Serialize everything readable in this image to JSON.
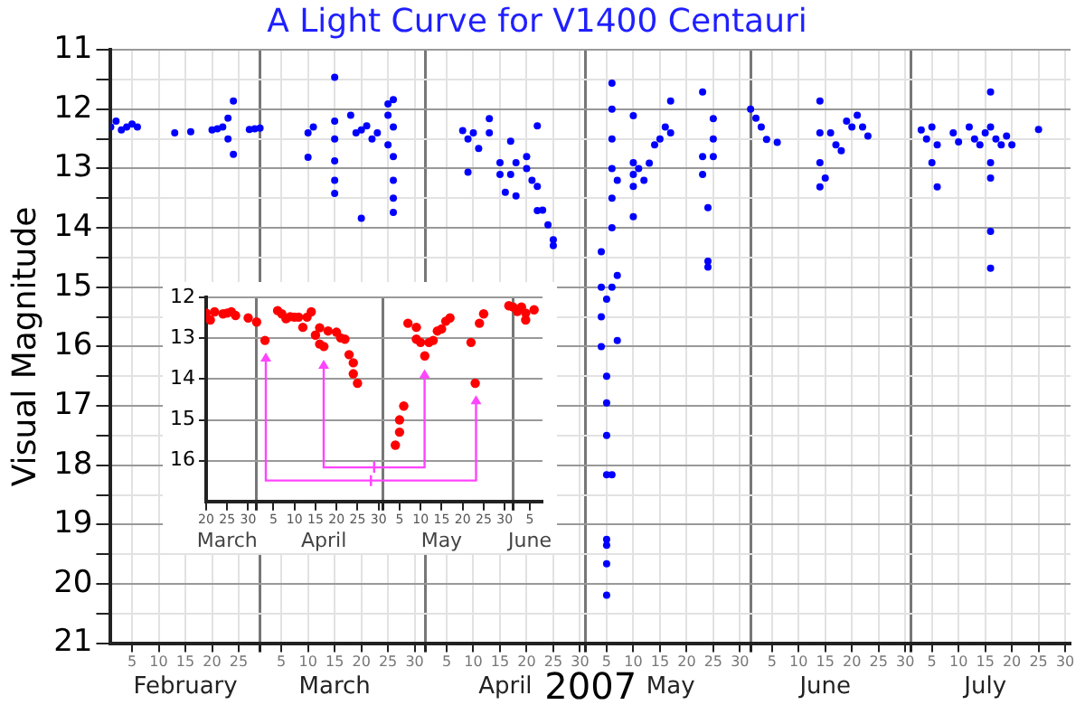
{
  "chart_data": [
    {
      "type": "scatter",
      "title": "A Light Curve for V1400 Centauri",
      "xlabel": "2007",
      "ylabel": "Visual Magnitude",
      "marker": "circle",
      "grid": true,
      "xlim": [
        "2007-02-01",
        "2007-07-31"
      ],
      "xticks": [
        {
          "value": "2007-02-05",
          "label": "5"
        },
        {
          "value": "2007-02-10",
          "label": "10"
        },
        {
          "value": "2007-02-15",
          "label": "15"
        },
        {
          "value": "2007-02-20",
          "label": "20"
        },
        {
          "value": "2007-02-25",
          "label": "25"
        },
        {
          "value": "2007-03-01",
          "label": null
        },
        {
          "value": "2007-03-05",
          "label": "5"
        },
        {
          "value": "2007-03-10",
          "label": "10"
        },
        {
          "value": "2007-03-15",
          "label": "15"
        },
        {
          "value": "2007-03-20",
          "label": "20"
        },
        {
          "value": "2007-03-25",
          "label": "25"
        },
        {
          "value": "2007-03-30",
          "label": "30"
        },
        {
          "value": "2007-04-01",
          "label": null
        },
        {
          "value": "2007-04-05",
          "label": "5"
        },
        {
          "value": "2007-04-10",
          "label": "10"
        },
        {
          "value": "2007-04-15",
          "label": "15"
        },
        {
          "value": "2007-04-20",
          "label": "20"
        },
        {
          "value": "2007-04-25",
          "label": "25"
        },
        {
          "value": "2007-04-30",
          "label": "30"
        },
        {
          "value": "2007-05-01",
          "label": null
        },
        {
          "value": "2007-05-05",
          "label": "5"
        },
        {
          "value": "2007-05-10",
          "label": "10"
        },
        {
          "value": "2007-05-15",
          "label": "15"
        },
        {
          "value": "2007-05-20",
          "label": "20"
        },
        {
          "value": "2007-05-25",
          "label": "25"
        },
        {
          "value": "2007-05-30",
          "label": "30"
        },
        {
          "value": "2007-06-01",
          "label": null
        },
        {
          "value": "2007-06-05",
          "label": "5"
        },
        {
          "value": "2007-06-10",
          "label": "10"
        },
        {
          "value": "2007-06-15",
          "label": "15"
        },
        {
          "value": "2007-06-20",
          "label": "20"
        },
        {
          "value": "2007-06-25",
          "label": "25"
        },
        {
          "value": "2007-06-30",
          "label": "30"
        },
        {
          "value": "2007-07-01",
          "label": null
        },
        {
          "value": "2007-07-05",
          "label": "5"
        },
        {
          "value": "2007-07-10",
          "label": "10"
        },
        {
          "value": "2007-07-15",
          "label": "15"
        },
        {
          "value": "2007-07-20",
          "label": "20"
        },
        {
          "value": "2007-07-25",
          "label": "25"
        },
        {
          "value": "2007-07-30",
          "label": "30"
        }
      ],
      "x2lim": [
        "2007-02-01",
        "2007-07-31"
      ],
      "x2ticks": [
        {
          "value": "2007-02-15",
          "label": "February"
        },
        {
          "value": "2007-03-15",
          "label": "March"
        },
        {
          "value": "2007-04-16",
          "label": "April"
        },
        {
          "value": "2007-05-17",
          "label": "May"
        },
        {
          "value": "2007-06-15",
          "label": "June"
        },
        {
          "value": "2007-07-15",
          "label": "July"
        }
      ],
      "ylim": [
        21,
        11
      ],
      "yticks": [
        11,
        {
          "value": 11.5,
          "label": null
        },
        12,
        {
          "value": 12.5,
          "label": null
        },
        13,
        {
          "value": 13.5,
          "label": null
        },
        14,
        {
          "value": 14.5,
          "label": null
        },
        15,
        {
          "value": 15.5,
          "label": null
        },
        16,
        {
          "value": 16.5,
          "label": null
        },
        17,
        {
          "value": 17.5,
          "label": null
        },
        18,
        {
          "value": 18.5,
          "label": null
        },
        19,
        {
          "value": 19.5,
          "label": null
        },
        20,
        {
          "value": 20.5,
          "label": null
        },
        21
      ],
      "series": [
        {
          "color": "#0000ff",
          "x": [
            "2007-02-01",
            "2007-02-02",
            "2007-02-03",
            "2007-02-04",
            "2007-02-05",
            "2007-02-06",
            "2007-02-13",
            "2007-02-16",
            "2007-02-20",
            "2007-02-21",
            "2007-02-22",
            "2007-02-23",
            "2007-02-23",
            "2007-02-24",
            "2007-02-24",
            "2007-02-27",
            "2007-02-28",
            "2007-03-01",
            "2007-03-10",
            "2007-03-10",
            "2007-03-11",
            "2007-03-15",
            "2007-03-15",
            "2007-03-15",
            "2007-03-15",
            "2007-03-15",
            "2007-03-15",
            "2007-03-18",
            "2007-03-19",
            "2007-03-20",
            "2007-03-20",
            "2007-03-21",
            "2007-03-22",
            "2007-03-23",
            "2007-03-25",
            "2007-03-25",
            "2007-03-25",
            "2007-03-26",
            "2007-03-26",
            "2007-03-26",
            "2007-03-26",
            "2007-03-26",
            "2007-03-26",
            "2007-04-08",
            "2007-04-09",
            "2007-04-09",
            "2007-04-10",
            "2007-04-11",
            "2007-04-13",
            "2007-04-13",
            "2007-04-15",
            "2007-04-15",
            "2007-04-16",
            "2007-04-17",
            "2007-04-17",
            "2007-04-18",
            "2007-04-18",
            "2007-04-20",
            "2007-04-20",
            "2007-04-21",
            "2007-04-22",
            "2007-04-22",
            "2007-04-22",
            "2007-04-23",
            "2007-04-24",
            "2007-04-25",
            "2007-04-25",
            "2007-05-04",
            "2007-05-04",
            "2007-05-04",
            "2007-05-04",
            "2007-05-05",
            "2007-05-05",
            "2007-05-05",
            "2007-05-05",
            "2007-05-05",
            "2007-05-05",
            "2007-05-05",
            "2007-05-05",
            "2007-05-05",
            "2007-05-06",
            "2007-05-06",
            "2007-05-06",
            "2007-05-06",
            "2007-05-06",
            "2007-05-06",
            "2007-05-06",
            "2007-05-06",
            "2007-05-07",
            "2007-05-07",
            "2007-05-07",
            "2007-05-10",
            "2007-05-10",
            "2007-05-10",
            "2007-05-10",
            "2007-05-10",
            "2007-05-11",
            "2007-05-12",
            "2007-05-13",
            "2007-05-14",
            "2007-05-15",
            "2007-05-16",
            "2007-05-17",
            "2007-05-17",
            "2007-05-23",
            "2007-05-23",
            "2007-05-23",
            "2007-05-24",
            "2007-05-24",
            "2007-05-24",
            "2007-05-25",
            "2007-05-25",
            "2007-05-25",
            "2007-06-01",
            "2007-06-02",
            "2007-06-03",
            "2007-06-04",
            "2007-06-06",
            "2007-06-14",
            "2007-06-14",
            "2007-06-14",
            "2007-06-14",
            "2007-06-15",
            "2007-06-16",
            "2007-06-17",
            "2007-06-18",
            "2007-06-19",
            "2007-06-20",
            "2007-06-21",
            "2007-06-22",
            "2007-06-23",
            "2007-07-03",
            "2007-07-04",
            "2007-07-05",
            "2007-07-05",
            "2007-07-06",
            "2007-07-06",
            "2007-07-09",
            "2007-07-10",
            "2007-07-12",
            "2007-07-13",
            "2007-07-14",
            "2007-07-15",
            "2007-07-16",
            "2007-07-16",
            "2007-07-16",
            "2007-07-16",
            "2007-07-16",
            "2007-07-16",
            "2007-07-17",
            "2007-07-18",
            "2007-07-19",
            "2007-07-20",
            "2007-07-25"
          ],
          "values": [
            12.3,
            12.2,
            12.35,
            12.3,
            12.25,
            12.3,
            12.4,
            12.38,
            12.35,
            12.33,
            12.3,
            12.15,
            12.5,
            11.86,
            12.76,
            12.34,
            12.33,
            12.32,
            12.4,
            12.81,
            12.3,
            11.46,
            12.2,
            12.5,
            12.87,
            13.2,
            13.42,
            12.1,
            12.4,
            12.35,
            13.84,
            12.28,
            12.5,
            12.4,
            11.91,
            12.1,
            12.6,
            11.84,
            12.3,
            12.8,
            13.2,
            13.5,
            13.74,
            12.36,
            12.5,
            13.06,
            12.4,
            12.66,
            12.16,
            12.4,
            12.9,
            13.1,
            13.4,
            13.1,
            12.54,
            13.46,
            12.9,
            12.8,
            13.0,
            13.2,
            13.3,
            12.28,
            13.71,
            13.7,
            13.95,
            14.2,
            14.3,
            14.4,
            15.0,
            15.5,
            16.0,
            15.2,
            16.5,
            16.95,
            17.5,
            18.16,
            19.25,
            19.35,
            19.66,
            20.19,
            15.0,
            14.0,
            13.5,
            13.0,
            12.5,
            12.0,
            11.56,
            18.16,
            15.9,
            14.8,
            13.2,
            12.11,
            12.9,
            13.1,
            13.3,
            13.81,
            13.0,
            13.2,
            12.91,
            12.6,
            12.5,
            12.3,
            11.86,
            12.4,
            11.71,
            12.8,
            13.1,
            13.66,
            14.56,
            14.66,
            12.16,
            12.5,
            12.8,
            12.0,
            12.15,
            12.3,
            12.51,
            12.56,
            11.86,
            12.4,
            12.9,
            13.31,
            13.16,
            12.4,
            12.6,
            12.7,
            12.2,
            12.3,
            12.1,
            12.3,
            12.45,
            12.35,
            12.5,
            12.3,
            12.9,
            13.31,
            12.6,
            12.4,
            12.55,
            12.3,
            12.5,
            12.6,
            12.4,
            11.71,
            12.3,
            12.9,
            13.16,
            14.06,
            14.68,
            12.5,
            12.6,
            12.45,
            12.6,
            12.34
          ]
        }
      ]
    },
    {
      "type": "scatter",
      "marker": "circle",
      "grid": true,
      "xlim": [
        "2007-03-20",
        "2007-06-08"
      ],
      "xticks": [
        {
          "value": "2007-03-20",
          "label": "20"
        },
        {
          "value": "2007-03-25",
          "label": "25"
        },
        {
          "value": "2007-03-30",
          "label": "30"
        },
        {
          "value": "2007-04-01",
          "label": null
        },
        {
          "value": "2007-04-05",
          "label": "5"
        },
        {
          "value": "2007-04-10",
          "label": "10"
        },
        {
          "value": "2007-04-15",
          "label": "15"
        },
        {
          "value": "2007-04-20",
          "label": "20"
        },
        {
          "value": "2007-04-25",
          "label": "25"
        },
        {
          "value": "2007-04-30",
          "label": "30"
        },
        {
          "value": "2007-05-01",
          "label": null
        },
        {
          "value": "2007-05-05",
          "label": "5"
        },
        {
          "value": "2007-05-10",
          "label": "10"
        },
        {
          "value": "2007-05-15",
          "label": "15"
        },
        {
          "value": "2007-05-20",
          "label": "20"
        },
        {
          "value": "2007-05-25",
          "label": "25"
        },
        {
          "value": "2007-05-30",
          "label": "30"
        },
        {
          "value": "2007-06-01",
          "label": null
        },
        {
          "value": "2007-06-05",
          "label": "5"
        }
      ],
      "x2lim": [
        "2007-03-20",
        "2007-06-08"
      ],
      "x2ticks": [
        {
          "value": "2007-03-25",
          "label": "March"
        },
        {
          "value": "2007-04-17",
          "label": "April"
        },
        {
          "value": "2007-05-15",
          "label": "May"
        },
        {
          "value": "2007-06-05",
          "label": "June"
        }
      ],
      "ylim": [
        17,
        12
      ],
      "yticks": [
        12,
        13,
        14,
        15,
        16
      ],
      "series": [
        {
          "color": "#ff0000",
          "x": [
            "2007-03-20",
            "2007-03-21",
            "2007-03-22",
            "2007-03-24",
            "2007-03-25",
            "2007-03-26",
            "2007-03-27",
            "2007-03-30",
            "2007-04-01",
            "2007-04-03",
            "2007-04-06",
            "2007-04-07",
            "2007-04-08",
            "2007-04-09",
            "2007-04-10",
            "2007-04-11",
            "2007-04-12",
            "2007-04-13",
            "2007-04-14",
            "2007-04-15",
            "2007-04-16",
            "2007-04-17",
            "2007-04-16",
            "2007-04-18",
            "2007-04-20",
            "2007-04-21",
            "2007-04-22",
            "2007-04-23",
            "2007-04-24",
            "2007-04-24",
            "2007-04-25",
            "2007-05-04",
            "2007-05-05",
            "2007-05-05",
            "2007-05-06",
            "2007-05-07",
            "2007-05-09",
            "2007-05-09",
            "2007-05-10",
            "2007-05-11",
            "2007-05-12",
            "2007-05-13",
            "2007-05-14",
            "2007-05-15",
            "2007-05-16",
            "2007-05-17",
            "2007-05-22",
            "2007-05-23",
            "2007-05-24",
            "2007-05-25",
            "2007-05-31",
            "2007-06-01",
            "2007-06-02",
            "2007-06-03",
            "2007-06-04",
            "2007-06-04",
            "2007-06-06"
          ],
          "values": [
            12.38,
            12.55,
            12.35,
            12.4,
            12.38,
            12.35,
            12.44,
            12.5,
            12.6,
            13.05,
            12.32,
            12.4,
            12.52,
            12.47,
            12.48,
            12.48,
            12.73,
            12.48,
            12.35,
            12.92,
            13.14,
            13.2,
            12.74,
            12.82,
            12.85,
            12.99,
            13.02,
            13.4,
            13.6,
            13.87,
            14.1,
            15.62,
            15.3,
            15.0,
            14.66,
            12.63,
            12.73,
            13.02,
            13.1,
            13.43,
            13.1,
            13.05,
            12.82,
            12.77,
            12.58,
            12.5,
            13.1,
            14.1,
            12.63,
            12.4,
            12.2,
            12.23,
            12.34,
            12.23,
            12.38,
            12.55,
            12.3
          ]
        }
      ]
    }
  ]
}
